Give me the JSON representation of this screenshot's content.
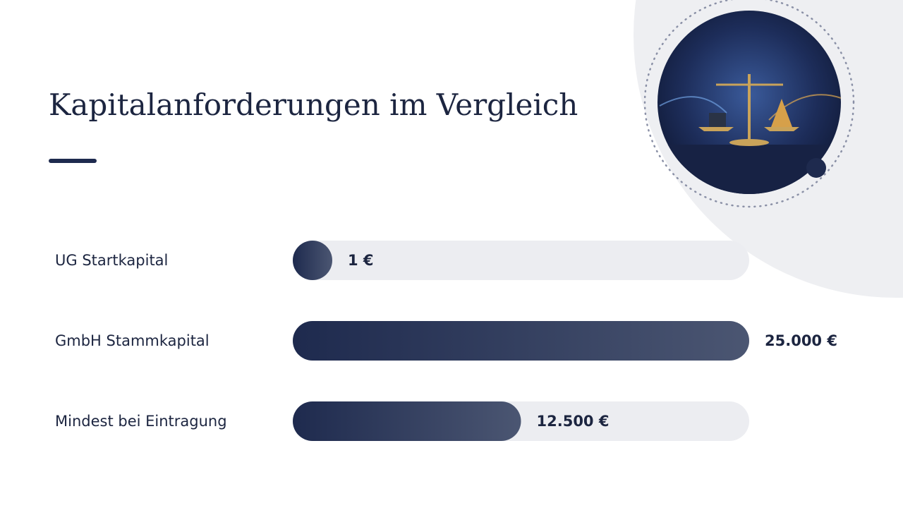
{
  "chart_data": {
    "type": "bar",
    "orientation": "horizontal",
    "title": "Kapitalanforderungen im Vergleich",
    "categories": [
      "UG Startkapital",
      "GmbH Stammkapital",
      "Mindest bei Eintragung"
    ],
    "values": [
      1,
      25000,
      12500
    ],
    "value_labels": [
      "1 €",
      "25.000 €",
      "12.500 €"
    ],
    "xlim": [
      0,
      25000
    ],
    "color": "#1e2a4e"
  }
}
